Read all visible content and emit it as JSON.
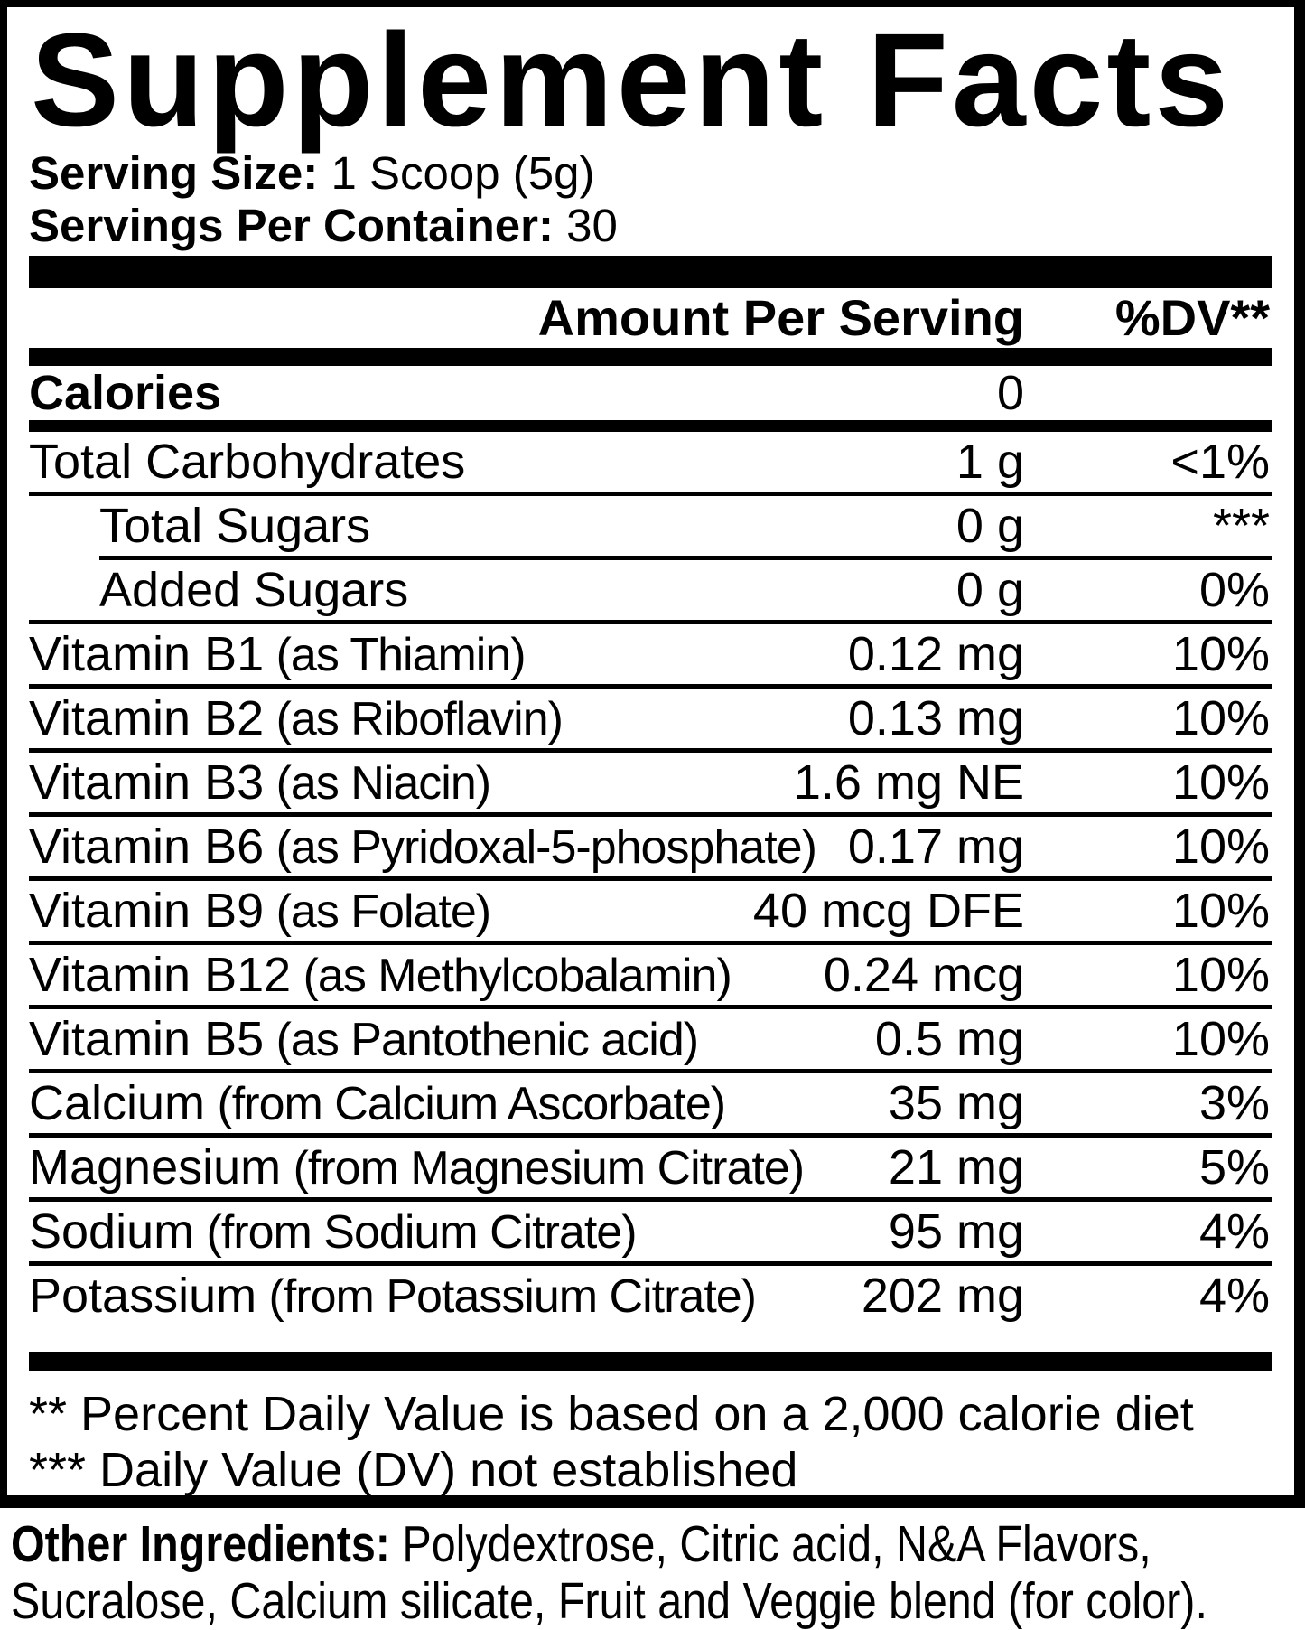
{
  "colors": {
    "ink": "#000000",
    "paper": "#ffffff"
  },
  "label": {
    "title": "Supplement Facts",
    "serving_size_label": "Serving Size:",
    "serving_size_value": "1 Scoop (5g)",
    "servings_label": "Servings Per Container:",
    "servings_value": "30",
    "header": {
      "amount": "Amount Per Serving",
      "dv": "%DV**"
    },
    "rows": [
      {
        "name": "Calories",
        "qualifier": "",
        "amount": "0",
        "dv": "",
        "indent": false,
        "bold": true,
        "first": true,
        "sep": "xthick"
      },
      {
        "name": "Total Carbohydrates",
        "qualifier": "",
        "amount": "1 g",
        "dv": "<1%",
        "indent": false,
        "bold": false,
        "sep": "thin"
      },
      {
        "name": "Total Sugars",
        "qualifier": "",
        "amount": "0 g",
        "dv": "***",
        "indent": true,
        "bold": false,
        "sep": "thin indent"
      },
      {
        "name": "Added Sugars",
        "qualifier": "",
        "amount": "0 g",
        "dv": "0%",
        "indent": true,
        "bold": false,
        "sep": "thin"
      },
      {
        "name": "Vitamin B1",
        "qualifier": "(as Thiamin)",
        "amount": "0.12 mg",
        "dv": "10%",
        "indent": false,
        "bold": false,
        "sep": "thin"
      },
      {
        "name": "Vitamin B2",
        "qualifier": "(as Riboflavin)",
        "amount": "0.13 mg",
        "dv": "10%",
        "indent": false,
        "bold": false,
        "sep": "thin"
      },
      {
        "name": "Vitamin B3",
        "qualifier": "(as Niacin)",
        "amount": "1.6 mg NE",
        "dv": "10%",
        "indent": false,
        "bold": false,
        "sep": "thin"
      },
      {
        "name": "Vitamin B6",
        "qualifier": "(as Pyridoxal-5-phosphate)",
        "amount": "0.17 mg",
        "dv": "10%",
        "indent": false,
        "bold": false,
        "sep": "thin"
      },
      {
        "name": "Vitamin B9",
        "qualifier": "(as Folate)",
        "amount": "40 mcg DFE",
        "dv": "10%",
        "indent": false,
        "bold": false,
        "sep": "thin"
      },
      {
        "name": "Vitamin B12",
        "qualifier": "(as Methylcobalamin)",
        "amount": "0.24 mcg",
        "dv": "10%",
        "indent": false,
        "bold": false,
        "sep": "thin"
      },
      {
        "name": "Vitamin B5",
        "qualifier": "(as Pantothenic acid)",
        "amount": "0.5 mg",
        "dv": "10%",
        "indent": false,
        "bold": false,
        "sep": "thin"
      },
      {
        "name": "Calcium",
        "qualifier": "(from Calcium Ascorbate)",
        "amount": "35 mg",
        "dv": "3%",
        "indent": false,
        "bold": false,
        "sep": "thin"
      },
      {
        "name": "Magnesium",
        "qualifier": "(from Magnesium Citrate)",
        "amount": "21 mg",
        "dv": "5%",
        "indent": false,
        "bold": false,
        "sep": "thin"
      },
      {
        "name": "Sodium",
        "qualifier": "(from Sodium Citrate)",
        "amount": "95 mg",
        "dv": "4%",
        "indent": false,
        "bold": false,
        "sep": "thin"
      },
      {
        "name": "Potassium",
        "qualifier": "(from Potassium Citrate)",
        "amount": "202 mg",
        "dv": "4%",
        "indent": false,
        "bold": false,
        "last": true,
        "sep": "none"
      }
    ],
    "footnotes": [
      "** Percent Daily Value is based on a 2,000 calorie diet",
      "*** Daily Value (DV) not established"
    ],
    "other_ingredients_label": "Other Ingredients:",
    "other_ingredients_line1": "Polydextrose, Citric acid, N&A Flavors,",
    "other_ingredients_line2": "Sucralose, Calcium silicate, Fruit and Veggie blend (for color)."
  }
}
